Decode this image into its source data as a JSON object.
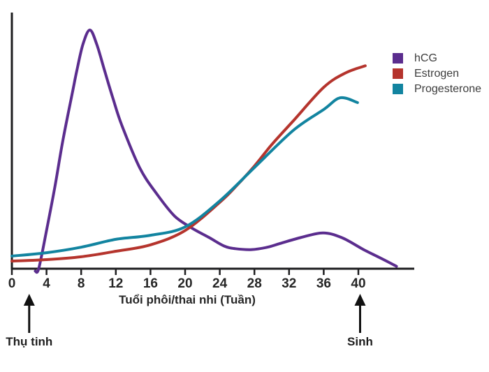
{
  "chart_data": {
    "type": "line",
    "title": "",
    "xlabel": "Tuổi phôi/thai nhi (Tuần)",
    "ylabel": "",
    "x_ticks": [
      0,
      4,
      8,
      12,
      16,
      20,
      24,
      28,
      32,
      36,
      40
    ],
    "x_range_weeks": [
      0,
      46.5
    ],
    "y_range_relative_level": [
      0,
      100
    ],
    "grid": false,
    "legend_position": "top-right",
    "axis_color": "#1d1d1f",
    "series": [
      {
        "name": "hCG",
        "color": "#5b2d8e",
        "points": [
          [
            2.7,
            -1
          ],
          [
            3.1,
            0
          ],
          [
            4,
            16
          ],
          [
            5,
            35
          ],
          [
            5.9,
            54
          ],
          [
            7,
            74
          ],
          [
            7.5,
            83
          ],
          [
            8.2,
            94
          ],
          [
            9,
            100
          ],
          [
            9.8,
            94
          ],
          [
            10.7,
            83
          ],
          [
            11.7,
            71
          ],
          [
            12.7,
            60
          ],
          [
            14.8,
            42
          ],
          [
            16.8,
            31
          ],
          [
            18.8,
            22
          ],
          [
            20.8,
            17
          ],
          [
            22.8,
            13
          ],
          [
            24.5,
            9.5
          ],
          [
            25.8,
            8.4
          ],
          [
            27.7,
            8
          ],
          [
            29.5,
            9
          ],
          [
            30.9,
            10.5
          ],
          [
            33.3,
            13
          ],
          [
            35.9,
            15
          ],
          [
            38.1,
            13
          ],
          [
            40.6,
            8
          ],
          [
            42.6,
            4.4
          ],
          [
            44.4,
            1
          ]
        ]
      },
      {
        "name": "Estrogen",
        "color": "#b5342d",
        "points": [
          [
            0,
            3.2
          ],
          [
            4,
            3.8
          ],
          [
            8,
            5
          ],
          [
            12,
            7.3
          ],
          [
            16,
            10
          ],
          [
            20,
            16
          ],
          [
            24,
            27.8
          ],
          [
            26,
            35
          ],
          [
            28,
            43
          ],
          [
            30,
            52
          ],
          [
            32.5,
            62
          ],
          [
            36,
            76
          ],
          [
            38.5,
            82
          ],
          [
            40.8,
            85
          ]
        ]
      },
      {
        "name": "Progesterone",
        "color": "#1284a0",
        "points": [
          [
            0,
            5.3
          ],
          [
            4,
            6.7
          ],
          [
            8,
            9
          ],
          [
            12,
            12.3
          ],
          [
            16,
            14
          ],
          [
            20,
            17.5
          ],
          [
            24,
            28.4
          ],
          [
            28,
            42.4
          ],
          [
            32.5,
            58
          ],
          [
            36,
            66.7
          ],
          [
            37.9,
            71.6
          ],
          [
            39.9,
            69.6
          ]
        ]
      }
    ],
    "annotations": [
      {
        "label": "Thụ tinh",
        "week": 2.0,
        "type": "up-arrow"
      },
      {
        "label": "Sinh",
        "week": 40.2,
        "type": "up-arrow"
      }
    ]
  }
}
